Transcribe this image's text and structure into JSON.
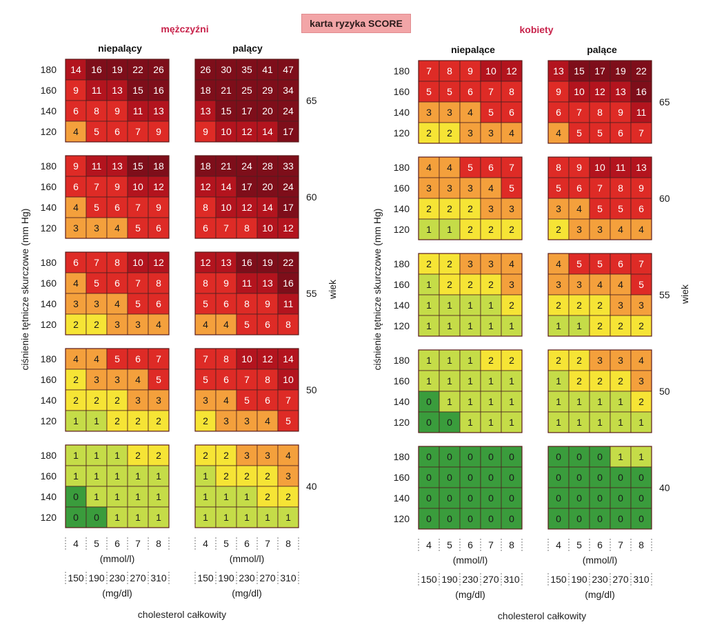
{
  "title": "karta ryzyka SCORE",
  "chart_data": {
    "type": "heatmap",
    "title": "karta ryzyka SCORE",
    "ylabel": "ciśnienie tętnicze skurczowe (mm Hg)",
    "age_axis_label": "wiek",
    "xlabel": "cholesterol całkowity",
    "bp_levels": [
      "180",
      "160",
      "140",
      "120"
    ],
    "ages": [
      "65",
      "60",
      "55",
      "50",
      "40"
    ],
    "chol_mmol": [
      "4",
      "5",
      "6",
      "7",
      "8"
    ],
    "chol_mmol_unit": "(mmol/l)",
    "chol_mgdl": [
      "150",
      "190",
      "230",
      "270",
      "310"
    ],
    "chol_mgdl_unit": "(mg/dl)",
    "color_scale": {
      "0": "#3a9c3c",
      "1": "#c5dc48",
      "2": "#f6e435",
      "3-4": "#f4a03c",
      "5-9": "#de2b26",
      "10-14": "#b3141e",
      "15+": "#7e0e1a"
    },
    "panels": [
      {
        "sex": "mężczyźni",
        "smoking": "niepalący",
        "blocks": [
          [
            [
              14,
              16,
              19,
              22,
              26
            ],
            [
              9,
              11,
              13,
              15,
              16
            ],
            [
              6,
              8,
              9,
              11,
              13
            ],
            [
              4,
              5,
              6,
              7,
              9
            ]
          ],
          [
            [
              9,
              11,
              13,
              15,
              18
            ],
            [
              6,
              7,
              9,
              10,
              12
            ],
            [
              4,
              5,
              6,
              7,
              9
            ],
            [
              3,
              3,
              4,
              5,
              6
            ]
          ],
          [
            [
              6,
              7,
              8,
              10,
              12
            ],
            [
              4,
              5,
              6,
              7,
              8
            ],
            [
              3,
              3,
              4,
              5,
              6
            ],
            [
              2,
              2,
              3,
              3,
              4
            ]
          ],
          [
            [
              4,
              4,
              5,
              6,
              7
            ],
            [
              2,
              3,
              3,
              4,
              5
            ],
            [
              2,
              2,
              2,
              3,
              3
            ],
            [
              1,
              1,
              2,
              2,
              2
            ]
          ],
          [
            [
              1,
              1,
              1,
              2,
              2
            ],
            [
              1,
              1,
              1,
              1,
              1
            ],
            [
              0,
              1,
              1,
              1,
              1
            ],
            [
              0,
              0,
              1,
              1,
              1
            ]
          ]
        ]
      },
      {
        "sex": "mężczyźni",
        "smoking": "palący",
        "blocks": [
          [
            [
              26,
              30,
              35,
              41,
              47
            ],
            [
              18,
              21,
              25,
              29,
              34
            ],
            [
              13,
              15,
              17,
              20,
              24
            ],
            [
              9,
              10,
              12,
              14,
              17
            ]
          ],
          [
            [
              18,
              21,
              24,
              28,
              33
            ],
            [
              12,
              14,
              17,
              20,
              24
            ],
            [
              8,
              10,
              12,
              14,
              17
            ],
            [
              6,
              7,
              8,
              10,
              12
            ]
          ],
          [
            [
              12,
              13,
              16,
              19,
              22
            ],
            [
              8,
              9,
              11,
              13,
              16
            ],
            [
              5,
              6,
              8,
              9,
              11
            ],
            [
              4,
              4,
              5,
              6,
              8
            ]
          ],
          [
            [
              7,
              8,
              10,
              12,
              14
            ],
            [
              5,
              6,
              7,
              8,
              10
            ],
            [
              3,
              4,
              5,
              6,
              7
            ],
            [
              2,
              3,
              3,
              4,
              5
            ]
          ],
          [
            [
              2,
              2,
              3,
              3,
              4
            ],
            [
              1,
              2,
              2,
              2,
              3
            ],
            [
              1,
              1,
              1,
              2,
              2
            ],
            [
              1,
              1,
              1,
              1,
              1
            ]
          ]
        ]
      },
      {
        "sex": "kobiety",
        "smoking": "niepalące",
        "blocks": [
          [
            [
              7,
              8,
              9,
              10,
              12
            ],
            [
              5,
              5,
              6,
              7,
              8
            ],
            [
              3,
              3,
              4,
              5,
              6
            ],
            [
              2,
              2,
              3,
              3,
              4
            ]
          ],
          [
            [
              4,
              4,
              5,
              6,
              7
            ],
            [
              3,
              3,
              3,
              4,
              5
            ],
            [
              2,
              2,
              2,
              3,
              3
            ],
            [
              1,
              1,
              2,
              2,
              2
            ]
          ],
          [
            [
              2,
              2,
              3,
              3,
              4
            ],
            [
              1,
              2,
              2,
              2,
              3
            ],
            [
              1,
              1,
              1,
              1,
              2
            ],
            [
              1,
              1,
              1,
              1,
              1
            ]
          ],
          [
            [
              1,
              1,
              1,
              2,
              2
            ],
            [
              1,
              1,
              1,
              1,
              1
            ],
            [
              0,
              1,
              1,
              1,
              1
            ],
            [
              0,
              0,
              1,
              1,
              1
            ]
          ],
          [
            [
              0,
              0,
              0,
              0,
              0
            ],
            [
              0,
              0,
              0,
              0,
              0
            ],
            [
              0,
              0,
              0,
              0,
              0
            ],
            [
              0,
              0,
              0,
              0,
              0
            ]
          ]
        ]
      },
      {
        "sex": "kobiety",
        "smoking": "palące",
        "blocks": [
          [
            [
              13,
              15,
              17,
              19,
              22
            ],
            [
              9,
              10,
              12,
              13,
              16
            ],
            [
              6,
              7,
              8,
              9,
              11
            ],
            [
              4,
              5,
              5,
              6,
              7
            ]
          ],
          [
            [
              8,
              9,
              10,
              11,
              13
            ],
            [
              5,
              6,
              7,
              8,
              9
            ],
            [
              3,
              4,
              5,
              5,
              6
            ],
            [
              2,
              3,
              3,
              4,
              4
            ]
          ],
          [
            [
              4,
              5,
              5,
              6,
              7
            ],
            [
              3,
              3,
              4,
              4,
              5
            ],
            [
              2,
              2,
              2,
              3,
              3
            ],
            [
              1,
              1,
              2,
              2,
              2
            ]
          ],
          [
            [
              2,
              2,
              3,
              3,
              4
            ],
            [
              1,
              2,
              2,
              2,
              3
            ],
            [
              1,
              1,
              1,
              1,
              2
            ],
            [
              1,
              1,
              1,
              1,
              1
            ]
          ],
          [
            [
              0,
              0,
              0,
              1,
              1
            ],
            [
              0,
              0,
              0,
              0,
              0
            ],
            [
              0,
              0,
              0,
              0,
              0
            ],
            [
              0,
              0,
              0,
              0,
              0
            ]
          ]
        ]
      }
    ]
  }
}
